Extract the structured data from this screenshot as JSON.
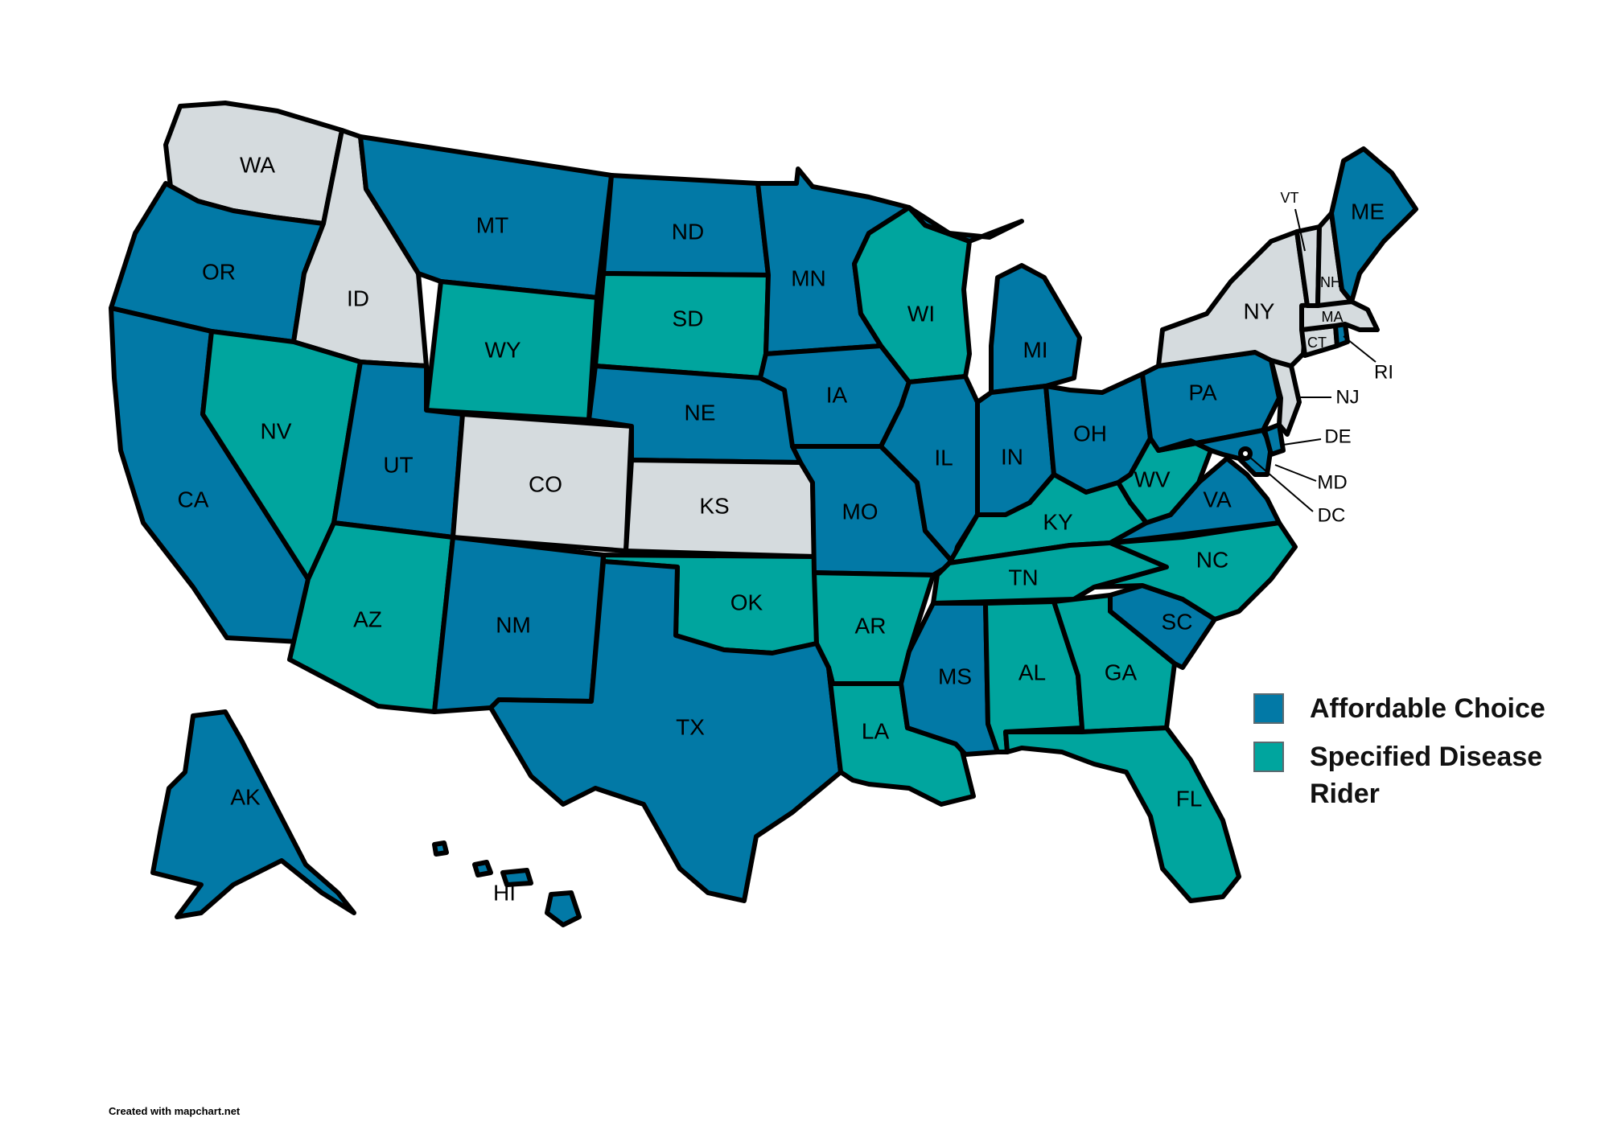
{
  "colors": {
    "affordable_choice": "#0279a6",
    "specified_disease_rider": "#00a59e",
    "neither": "#d5dbde",
    "border": "#000000"
  },
  "legend": {
    "items": [
      {
        "key": "affordable_choice",
        "label": "Affordable Choice"
      },
      {
        "key": "specified_disease_rider",
        "label": "Specified Disease Rider"
      }
    ]
  },
  "credit": "Created with mapchart.net",
  "states": {
    "WA": "neither",
    "OR": "affordable_choice",
    "CA": "affordable_choice",
    "ID": "neither",
    "NV": "specified_disease_rider",
    "MT": "affordable_choice",
    "WY": "specified_disease_rider",
    "UT": "affordable_choice",
    "AZ": "specified_disease_rider",
    "CO": "neither",
    "NM": "affordable_choice",
    "ND": "affordable_choice",
    "SD": "specified_disease_rider",
    "NE": "affordable_choice",
    "KS": "neither",
    "OK": "specified_disease_rider",
    "TX": "affordable_choice",
    "MN": "affordable_choice",
    "IA": "affordable_choice",
    "MO": "affordable_choice",
    "AR": "specified_disease_rider",
    "LA": "specified_disease_rider",
    "WI": "specified_disease_rider",
    "IL": "affordable_choice",
    "MI": "affordable_choice",
    "IN": "affordable_choice",
    "OH": "affordable_choice",
    "KY": "specified_disease_rider",
    "TN": "specified_disease_rider",
    "MS": "affordable_choice",
    "AL": "specified_disease_rider",
    "GA": "specified_disease_rider",
    "FL": "specified_disease_rider",
    "SC": "affordable_choice",
    "NC": "specified_disease_rider",
    "VA": "affordable_choice",
    "WV": "specified_disease_rider",
    "PA": "affordable_choice",
    "NY": "neither",
    "VT": "neither",
    "NH": "neither",
    "ME": "affordable_choice",
    "MA": "neither",
    "RI": "affordable_choice",
    "CT": "neither",
    "NJ": "neither",
    "DE": "affordable_choice",
    "MD": "affordable_choice",
    "DC": "affordable_choice",
    "AK": "affordable_choice",
    "HI": "affordable_choice"
  },
  "labels": {
    "WA": "WA",
    "OR": "OR",
    "CA": "CA",
    "ID": "ID",
    "NV": "NV",
    "MT": "MT",
    "WY": "WY",
    "UT": "UT",
    "AZ": "AZ",
    "CO": "CO",
    "NM": "NM",
    "ND": "ND",
    "SD": "SD",
    "NE": "NE",
    "KS": "KS",
    "OK": "OK",
    "TX": "TX",
    "MN": "MN",
    "IA": "IA",
    "MO": "MO",
    "AR": "AR",
    "LA": "LA",
    "WI": "WI",
    "IL": "IL",
    "MI": "MI",
    "IN": "IN",
    "OH": "OH",
    "KY": "KY",
    "TN": "TN",
    "MS": "MS",
    "AL": "AL",
    "GA": "GA",
    "FL": "FL",
    "SC": "SC",
    "NC": "NC",
    "VA": "VA",
    "WV": "WV",
    "PA": "PA",
    "NY": "NY",
    "VT": "VT",
    "NH": "NH",
    "ME": "ME",
    "MA": "MA",
    "RI": "RI",
    "CT": "CT",
    "NJ": "NJ",
    "DE": "DE",
    "MD": "MD",
    "DC": "DC",
    "AK": "AK",
    "HI": "HI"
  }
}
